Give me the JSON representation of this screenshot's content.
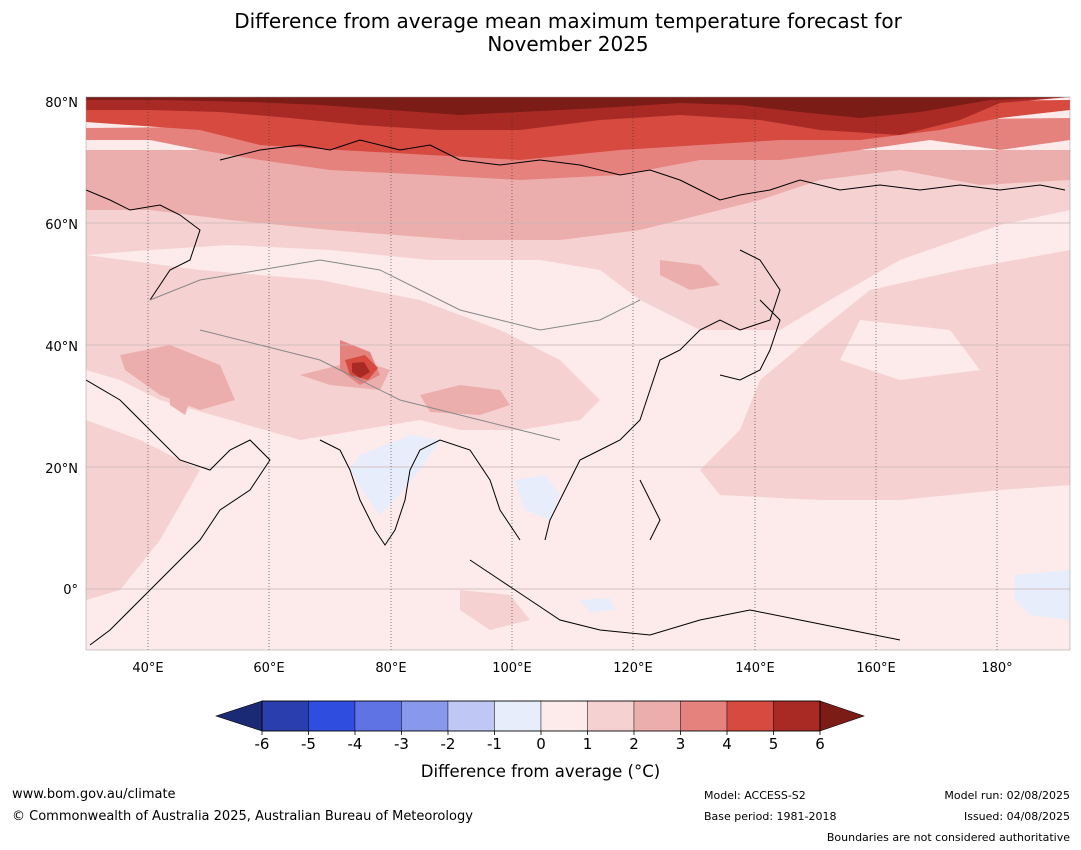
{
  "title": {
    "line1": "Difference from average mean maximum temperature forecast for",
    "line2": "November 2025"
  },
  "axes": {
    "lat_ticks": [
      {
        "label": "80°N",
        "value": 80
      },
      {
        "label": "60°N",
        "value": 60
      },
      {
        "label": "40°N",
        "value": 40
      },
      {
        "label": "20°N",
        "value": 20
      },
      {
        "label": "0°",
        "value": 0
      }
    ],
    "lon_ticks": [
      {
        "label": "40°E",
        "value": 40
      },
      {
        "label": "60°E",
        "value": 60
      },
      {
        "label": "80°E",
        "value": 80
      },
      {
        "label": "100°E",
        "value": 100
      },
      {
        "label": "120°E",
        "value": 120
      },
      {
        "label": "140°E",
        "value": 140
      },
      {
        "label": "160°E",
        "value": 160
      },
      {
        "label": "180°",
        "value": 180
      }
    ],
    "lon_range": [
      30,
      190
    ],
    "lat_range": [
      -10,
      81
    ]
  },
  "colorbar": {
    "label": "Difference from average (°C)",
    "tick_labels": [
      "-6",
      "-5",
      "-4",
      "-3",
      "-2",
      "-1",
      "0",
      "1",
      "2",
      "3",
      "4",
      "5",
      "6"
    ],
    "colors": [
      "#1b2a75",
      "#2a3ead",
      "#2f4ee0",
      "#5f73e4",
      "#8898ec",
      "#bfc8f5",
      "#e8edfb",
      "#fcebea",
      "#f5d2d1",
      "#ecaeac",
      "#e5827e",
      "#d64a40",
      "#a92a25",
      "#7b1c17"
    ]
  },
  "footer": {
    "url": "www.bom.gov.au/climate",
    "copyright": "© Commonwealth of Australia 2025, Australian Bureau of Meteorology",
    "model": "Model: ACCESS-S2",
    "base_period": "Base period: 1981-2018",
    "model_run": "Model run: 02/08/2025",
    "issued": "Issued: 04/08/2025",
    "boundaries_note": "Boundaries are not considered authoritative"
  }
}
